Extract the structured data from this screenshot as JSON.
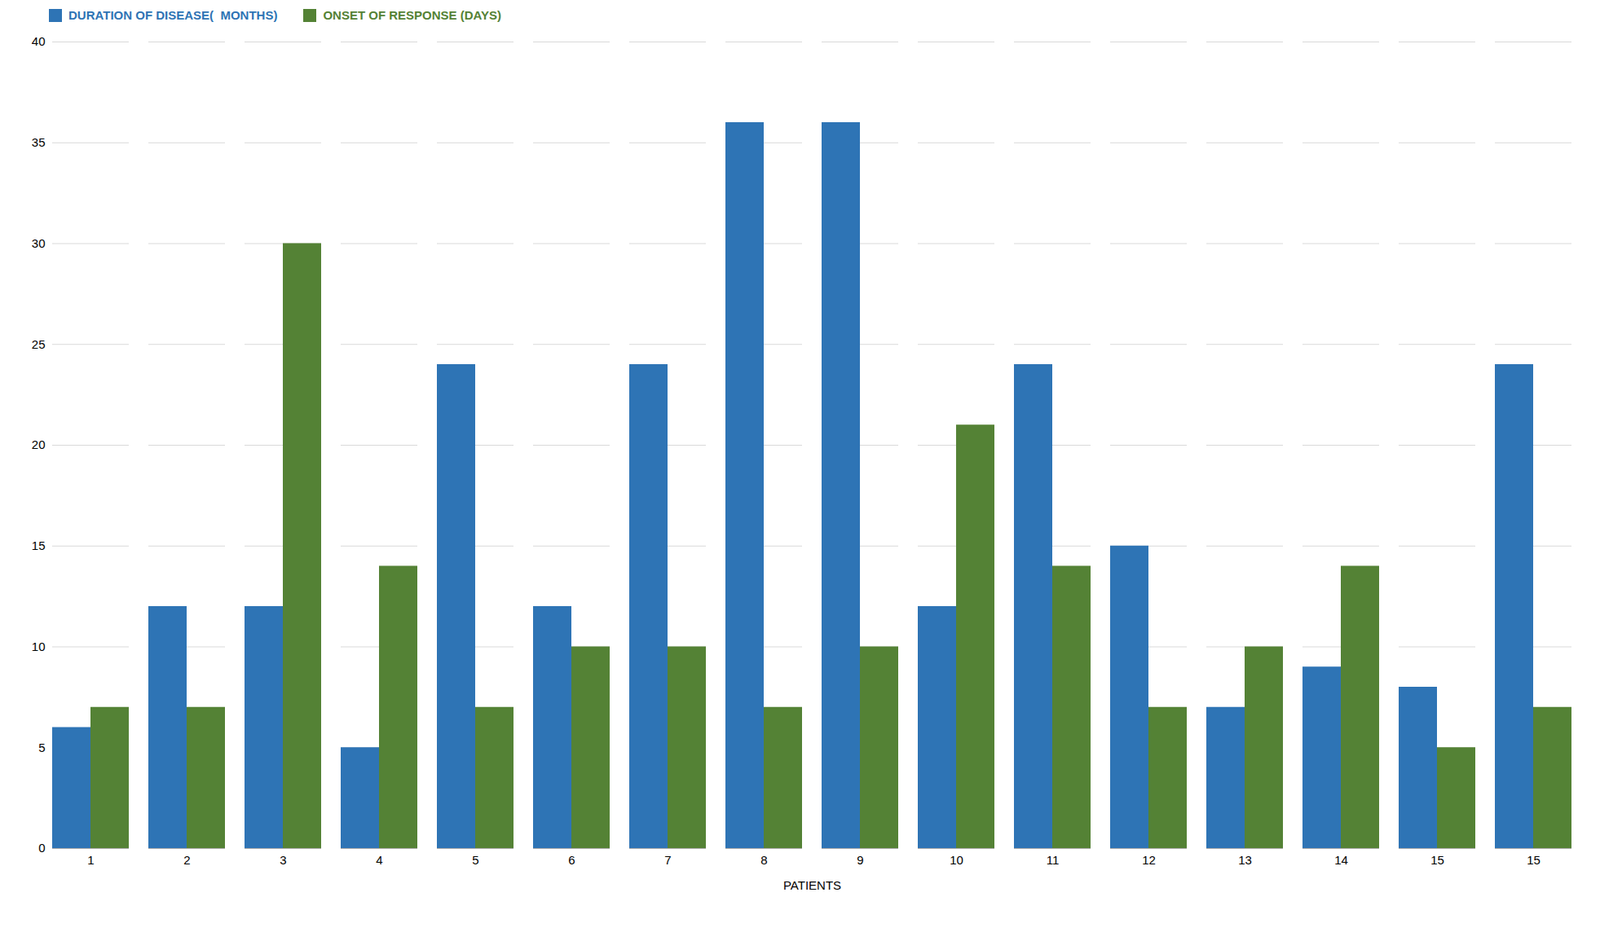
{
  "chart_data": {
    "type": "bar",
    "xlabel": "PATIENTS",
    "categories": [
      "1",
      "2",
      "3",
      "4",
      "5",
      "6",
      "7",
      "8",
      "9",
      "10",
      "11",
      "12",
      "13",
      "14",
      "15",
      "15"
    ],
    "series": [
      {
        "name": "DURATION OF DISEASE(  MONTHS)",
        "color": "#2E74B5",
        "values": [
          6,
          12,
          12,
          5,
          24,
          12,
          24,
          36,
          36,
          12,
          24,
          15,
          7,
          9,
          8,
          24
        ]
      },
      {
        "name": "ONSET OF RESPONSE (DAYS)",
        "color": "#548235",
        "values": [
          7,
          7,
          30,
          14,
          7,
          10,
          10,
          7,
          10,
          21,
          14,
          7,
          10,
          14,
          5,
          7
        ]
      }
    ],
    "ylim": [
      0,
      40
    ],
    "yticks": [
      0,
      5,
      10,
      15,
      20,
      25,
      30,
      35,
      40
    ],
    "grid": true,
    "legend": "upper left"
  }
}
